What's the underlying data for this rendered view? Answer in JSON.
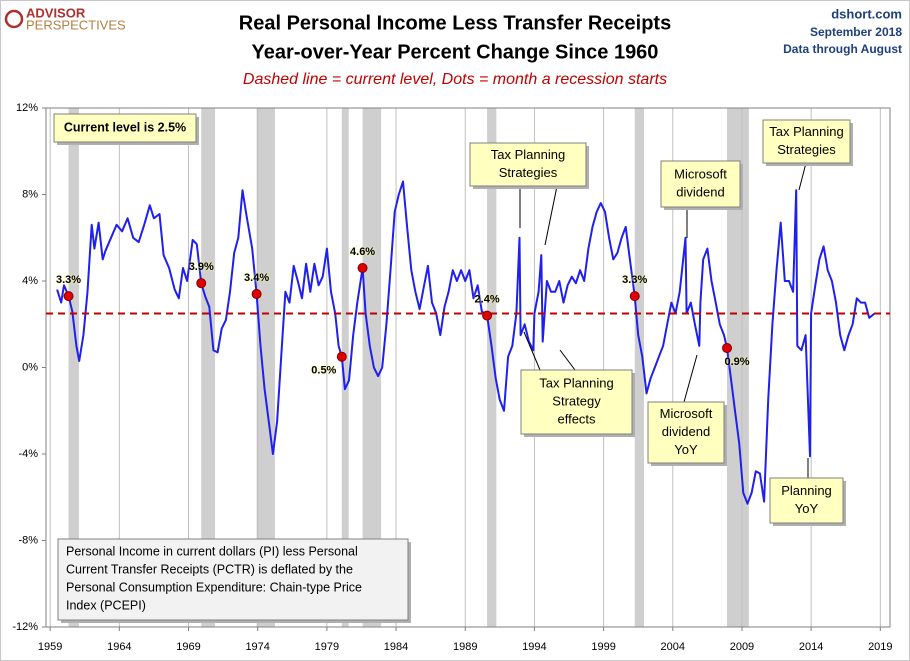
{
  "chart_data": {
    "type": "line",
    "logo": [
      "ADVISOR",
      "PERSPECTIVES"
    ],
    "title": [
      "Real Personal Income Less Transfer Receipts",
      "Year-over-Year Percent Change Since 1960"
    ],
    "subtitle": "Dashed line = current level, Dots = month a recession starts",
    "source": [
      "dshort.com",
      "September 2018",
      "Data through August"
    ],
    "color": "#1f1ff0",
    "x": [
      1959.5,
      1959.8,
      1960.0,
      1960.33,
      1960.6,
      1960.9,
      1961.1,
      1961.4,
      1961.7,
      1962.0,
      1962.2,
      1962.5,
      1962.8,
      1963.0,
      1963.4,
      1963.8,
      1964.2,
      1964.6,
      1965.0,
      1965.4,
      1965.8,
      1966.2,
      1966.5,
      1966.9,
      1967.2,
      1967.6,
      1968.0,
      1968.3,
      1968.6,
      1968.9,
      1969.3,
      1969.6,
      1969.92,
      1970.2,
      1970.5,
      1970.8,
      1971.1,
      1971.4,
      1971.7,
      1972.0,
      1972.3,
      1972.6,
      1972.9,
      1973.2,
      1973.6,
      1973.92,
      1974.2,
      1974.5,
      1974.8,
      1975.1,
      1975.4,
      1975.7,
      1976.0,
      1976.3,
      1976.6,
      1976.9,
      1977.2,
      1977.5,
      1977.8,
      1978.1,
      1978.4,
      1978.7,
      1979.0,
      1979.3,
      1979.6,
      1979.85,
      1980.08,
      1980.3,
      1980.6,
      1980.9,
      1981.2,
      1981.58,
      1981.8,
      1982.1,
      1982.4,
      1982.7,
      1983.0,
      1983.3,
      1983.6,
      1983.9,
      1984.2,
      1984.5,
      1984.8,
      1985.1,
      1985.4,
      1985.7,
      1986.0,
      1986.3,
      1986.6,
      1986.9,
      1987.2,
      1987.5,
      1987.8,
      1988.1,
      1988.4,
      1988.7,
      1989.0,
      1989.3,
      1989.6,
      1989.9,
      1990.2,
      1990.58,
      1990.9,
      1991.2,
      1991.5,
      1991.8,
      1992.1,
      1992.4,
      1992.7,
      1992.92,
      1993.0,
      1993.3,
      1993.6,
      1993.92,
      1994.0,
      1994.3,
      1994.5,
      1994.6,
      1994.9,
      1995.2,
      1995.5,
      1995.8,
      1996.1,
      1996.4,
      1996.7,
      1997.0,
      1997.3,
      1997.6,
      1997.9,
      1998.2,
      1998.5,
      1998.8,
      1999.1,
      1999.4,
      1999.7,
      2000.0,
      2000.3,
      2000.6,
      2000.9,
      2001.25,
      2001.5,
      2001.8,
      2002.1,
      2002.4,
      2002.7,
      2003.0,
      2003.3,
      2003.6,
      2003.9,
      2004.2,
      2004.5,
      2004.92,
      2005.0,
      2005.3,
      2005.6,
      2005.92,
      2006.0,
      2006.2,
      2006.5,
      2006.8,
      2007.1,
      2007.4,
      2007.7,
      2007.92,
      2008.2,
      2008.5,
      2008.8,
      2009.1,
      2009.4,
      2009.7,
      2010.0,
      2010.3,
      2010.6,
      2010.9,
      2011.2,
      2011.5,
      2011.8,
      2012.1,
      2012.4,
      2012.7,
      2012.92,
      2013.0,
      2013.3,
      2013.6,
      2013.92,
      2014.0,
      2014.3,
      2014.6,
      2014.9,
      2015.2,
      2015.5,
      2015.8,
      2016.1,
      2016.4,
      2016.7,
      2017.0,
      2017.3,
      2017.6,
      2017.9,
      2018.2,
      2018.6
    ],
    "values": [
      3.6,
      3.0,
      3.8,
      3.3,
      2.6,
      1.0,
      0.3,
      1.5,
      3.5,
      6.6,
      5.5,
      6.7,
      5.0,
      5.4,
      6.0,
      6.6,
      6.3,
      6.9,
      6.0,
      5.8,
      6.6,
      7.5,
      6.9,
      7.1,
      5.2,
      4.6,
      3.6,
      3.2,
      4.6,
      4.0,
      5.9,
      5.7,
      3.9,
      3.3,
      2.8,
      0.8,
      0.7,
      1.8,
      2.2,
      3.5,
      5.3,
      6.0,
      8.2,
      7.0,
      5.5,
      3.4,
      1.0,
      -1.0,
      -2.5,
      -4.0,
      -2.5,
      0.5,
      3.5,
      3.0,
      4.7,
      4.0,
      3.2,
      4.8,
      3.5,
      4.8,
      3.8,
      4.2,
      5.5,
      3.5,
      2.5,
      1.0,
      0.5,
      -1.0,
      -0.6,
      1.5,
      3.0,
      4.6,
      2.5,
      1.0,
      0.0,
      -0.4,
      0.0,
      2.0,
      4.5,
      7.2,
      8.0,
      8.6,
      6.5,
      4.5,
      3.5,
      2.7,
      3.7,
      4.7,
      3.0,
      2.5,
      1.5,
      2.8,
      3.5,
      4.5,
      4.0,
      4.5,
      4.0,
      4.5,
      3.2,
      3.8,
      2.6,
      2.4,
      1.0,
      -0.5,
      -1.5,
      -2.0,
      0.5,
      1.0,
      2.5,
      6.0,
      1.5,
      2.0,
      1.2,
      0.8,
      2.5,
      3.5,
      5.2,
      1.2,
      4.0,
      3.5,
      3.5,
      4.0,
      3.0,
      3.8,
      4.2,
      3.9,
      4.5,
      4.0,
      5.5,
      6.5,
      7.2,
      7.6,
      7.2,
      6.0,
      5.0,
      5.3,
      6.0,
      6.5,
      5.0,
      3.3,
      1.5,
      0.5,
      -1.2,
      -0.5,
      0.0,
      0.5,
      1.0,
      2.0,
      3.0,
      2.5,
      3.5,
      6.0,
      2.5,
      3.0,
      2.0,
      1.0,
      3.0,
      5.0,
      5.5,
      4.0,
      3.0,
      2.0,
      1.5,
      0.9,
      -0.5,
      -2.0,
      -3.5,
      -5.8,
      -6.3,
      -5.8,
      -4.8,
      -4.9,
      -6.2,
      -1.5,
      2.0,
      4.5,
      6.7,
      4.0,
      4.0,
      3.5,
      8.2,
      1.0,
      0.8,
      1.5,
      -4.1,
      2.5,
      3.8,
      5.0,
      5.6,
      4.5,
      4.0,
      3.0,
      1.5,
      0.8,
      1.5,
      2.0,
      3.2,
      3.0,
      3.0,
      2.3,
      2.5
    ],
    "current_level": 2.5,
    "current_level_color": "#c00000",
    "current_level_label": "Current level is 2.5%",
    "recessions": [
      [
        1960.33,
        1961.08
      ],
      [
        1969.92,
        1970.92
      ],
      [
        1973.92,
        1975.25
      ],
      [
        1980.08,
        1980.58
      ],
      [
        1981.58,
        1982.92
      ],
      [
        1990.58,
        1991.25
      ],
      [
        2001.25,
        2001.92
      ],
      [
        2007.92,
        2009.5
      ]
    ],
    "recession_color": "#cfcfcf",
    "recession_starts": {
      "color": "#e00000",
      "x": [
        1960.33,
        1969.92,
        1973.92,
        1980.08,
        1981.58,
        1990.58,
        2001.25,
        2007.92
      ],
      "values": [
        3.3,
        3.9,
        3.4,
        0.5,
        4.6,
        2.4,
        3.3,
        0.9
      ],
      "value_labels": [
        "3.3%",
        "3.9%",
        "3.4%",
        "0.5%",
        "4.6%",
        "2.4%",
        "3.3%",
        "0.9%"
      ]
    },
    "annotations": [
      {
        "text": [
          "Tax Planning",
          "Strategies"
        ]
      },
      {
        "text": [
          "Microsoft",
          "dividend"
        ]
      },
      {
        "text": [
          "Tax Planning",
          "Strategies"
        ]
      },
      {
        "text": [
          "Tax Planning",
          "Strategy",
          "effects"
        ]
      },
      {
        "text": [
          "Microsoft",
          "dividend",
          "YoY"
        ]
      },
      {
        "text": [
          "Planning",
          "YoY"
        ]
      }
    ],
    "note": [
      "Personal Income in current dollars  (PI) less Personal",
      "Current Transfer Receipts (PCTR) is deflated by the",
      "Personal Consumption Expenditure: Chain-type Price",
      "Index (PCEPI)"
    ],
    "xlim": [
      1958.7,
      2019.7
    ],
    "xticks": [
      1959,
      1964,
      1969,
      1974,
      1979,
      1984,
      1989,
      1994,
      1999,
      2004,
      2009,
      2014,
      2019
    ],
    "ylim": [
      -12,
      12
    ],
    "yticks": [
      {
        "value": -12,
        "label": "-12%"
      },
      {
        "value": -8,
        "label": "-8%"
      },
      {
        "value": -4,
        "label": "-4%"
      },
      {
        "value": 0,
        "label": "0%"
      },
      {
        "value": 4,
        "label": "4%"
      },
      {
        "value": 8,
        "label": "8%"
      },
      {
        "value": 12,
        "label": "12%"
      }
    ],
    "grid": true
  }
}
